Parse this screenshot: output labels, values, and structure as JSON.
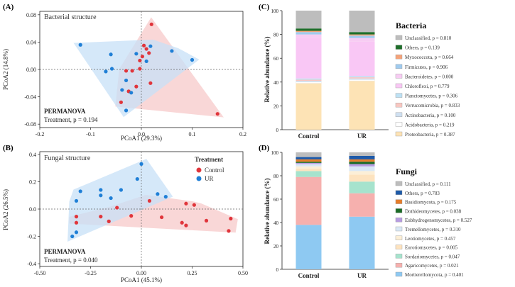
{
  "figure": {
    "panel_labels": [
      "(A)",
      "(B)",
      "(C)",
      "(D)"
    ]
  },
  "chart_data": [
    {
      "type": "scatter",
      "panel": "(A)",
      "title": "Bacterial structure",
      "xlabel": "PCoA1 (29.3%)",
      "ylabel": "PCoA2 (14.8%)",
      "xlim": [
        -0.2,
        0.2
      ],
      "ylim": [
        -0.085,
        0.085
      ],
      "xticks": [
        -0.2,
        -0.1,
        0.0,
        0.1,
        0.2
      ],
      "xtick_labels": [
        "-0.2",
        "-0.1",
        "0.0",
        "0.1",
        "0.2"
      ],
      "yticks": [
        -0.08,
        -0.04,
        0.0,
        0.04,
        0.08
      ],
      "ytick_labels": [
        "-0.08",
        "-0.04",
        "0.00",
        "0.04",
        "0.08"
      ],
      "grid": false,
      "annotation": {
        "heading": "PERMANOVA",
        "text": "Treatment, p = 0.194"
      },
      "series": [
        {
          "name": "Control",
          "color": "#e0353b",
          "fill": "#f7c9c9",
          "points": [
            [
              0.02,
              0.066
            ],
            [
              0.005,
              0.035
            ],
            [
              0.01,
              0.03
            ],
            [
              0.015,
              0.024
            ],
            [
              0.002,
              0.019
            ],
            [
              -0.003,
              0.013
            ],
            [
              -0.018,
              -0.002
            ],
            [
              -0.03,
              -0.002
            ],
            [
              -0.003,
              0.001
            ],
            [
              0.018,
              -0.02
            ],
            [
              -0.01,
              -0.025
            ],
            [
              -0.025,
              -0.032
            ],
            [
              -0.04,
              -0.048
            ],
            [
              0.15,
              -0.065
            ]
          ]
        },
        {
          "name": "UR",
          "color": "#1f7fd6",
          "fill": "#c7e0f7",
          "points": [
            [
              -0.12,
              0.036
            ],
            [
              -0.06,
              0.022
            ],
            [
              -0.01,
              0.023
            ],
            [
              0.018,
              0.034
            ],
            [
              0.06,
              0.027
            ],
            [
              0.1,
              0.014
            ],
            [
              0.01,
              0.012
            ],
            [
              -0.058,
              0.001
            ],
            [
              -0.07,
              -0.003
            ],
            [
              -0.03,
              -0.016
            ],
            [
              -0.038,
              -0.03
            ],
            [
              -0.02,
              -0.034
            ],
            [
              -0.03,
              -0.06
            ]
          ]
        }
      ]
    },
    {
      "type": "scatter",
      "panel": "(B)",
      "title": "Fungal structure",
      "xlabel": "PCoA1 (45.1%)",
      "ylabel": "PCoA2 (26.5%)",
      "xlim": [
        -0.5,
        0.5
      ],
      "ylim": [
        -0.42,
        0.42
      ],
      "xticks": [
        -0.5,
        -0.25,
        0.0,
        0.25,
        0.5
      ],
      "xtick_labels": [
        "-0.50",
        "-0.25",
        "0.00",
        "0.25",
        "0.50"
      ],
      "yticks": [
        -0.4,
        -0.2,
        0.0,
        0.2,
        0.4
      ],
      "ytick_labels": [
        "-0.4",
        "-0.2",
        "0.0",
        "0.2",
        "0.4"
      ],
      "grid": false,
      "legend": {
        "title": "Treatment",
        "placement": "top-right"
      },
      "annotation": {
        "heading": "PERMANOVA",
        "text": "Treatment, p = 0.040"
      },
      "series": [
        {
          "name": "Control",
          "color": "#e0353b",
          "fill": "#f7c9c9",
          "points": [
            [
              -0.12,
              0.01
            ],
            [
              0.04,
              0.06
            ],
            [
              0.22,
              0.04
            ],
            [
              0.26,
              0.03
            ],
            [
              -0.32,
              -0.055
            ],
            [
              -0.2,
              -0.055
            ],
            [
              -0.05,
              -0.05
            ],
            [
              0.1,
              -0.06
            ],
            [
              0.32,
              -0.085
            ],
            [
              0.44,
              -0.07
            ],
            [
              -0.32,
              -0.1
            ],
            [
              -0.16,
              -0.09
            ],
            [
              0.2,
              -0.1
            ],
            [
              0.22,
              -0.12
            ],
            [
              0.43,
              -0.16
            ]
          ]
        },
        {
          "name": "UR",
          "color": "#1f7fd6",
          "fill": "#c7e0f7",
          "points": [
            [
              0.0,
              0.33
            ],
            [
              -0.02,
              0.22
            ],
            [
              -0.2,
              0.14
            ],
            [
              -0.1,
              0.14
            ],
            [
              -0.3,
              0.13
            ],
            [
              -0.2,
              0.1
            ],
            [
              -0.15,
              0.08
            ],
            [
              -0.32,
              0.06
            ],
            [
              0.08,
              0.11
            ],
            [
              0.12,
              0.09
            ],
            [
              -0.32,
              -0.17
            ],
            [
              -0.34,
              -0.2
            ]
          ]
        }
      ]
    },
    {
      "type": "bar",
      "stacked": true,
      "panel": "(C)",
      "legend_title": "Bacteria",
      "xlabel": "",
      "ylabel": "Relative abundance (%)",
      "categories": [
        "Control",
        "UR"
      ],
      "ylim": [
        0,
        100
      ],
      "yticks": [
        0,
        20,
        40,
        60,
        80,
        100
      ],
      "yticks_shown": [
        0,
        20,
        40,
        60,
        80,
        100
      ],
      "series": [
        {
          "name": "Proteobacteria",
          "label": "Proteobacteria, p = 0.387",
          "color": "#fde3b5",
          "values": [
            39,
            41
          ]
        },
        {
          "name": "Acidobacteria",
          "label": "Acidobacteria, p = 0.219",
          "color": "#ffffff",
          "values": [
            1,
            1
          ]
        },
        {
          "name": "Actinobacteria",
          "label": "Actinobacteria, p = 0.100",
          "color": "#cfe0f1",
          "values": [
            1,
            1
          ]
        },
        {
          "name": "Verrucomicrobia",
          "label": "Verrucomicrobia, p = 0.833",
          "color": "#f8c7c1",
          "values": [
            1,
            1
          ]
        },
        {
          "name": "Planctomycetes",
          "label": "Planctomycetes, p = 0.306",
          "color": "#bde1f4",
          "values": [
            1,
            1
          ]
        },
        {
          "name": "Chloroflexi",
          "label": "Chloroflexi, p = 0.779",
          "color": "#f9c7f5",
          "values": [
            34,
            29
          ]
        },
        {
          "name": "Bacteroidetes",
          "label": "Bacteroidetes, p = 0.000",
          "color": "#f7ccf3",
          "values": [
            3,
            3
          ]
        },
        {
          "name": "Firmicutes",
          "label": "Firmicutes, p = 0.906",
          "color": "#9fcbef",
          "values": [
            2,
            2
          ]
        },
        {
          "name": "Myxococcota",
          "label": "Myxococcota, p = 0.664",
          "color": "#f4a37a",
          "values": [
            1,
            1
          ]
        },
        {
          "name": "Others",
          "label": "Others, p = 0.139",
          "color": "#1e6e2a",
          "values": [
            2,
            2
          ]
        },
        {
          "name": "Unclassified",
          "label": "Unclassified, p = 0.810",
          "color": "#bdbdbd",
          "values": [
            15,
            18
          ]
        }
      ]
    },
    {
      "type": "bar",
      "stacked": true,
      "panel": "(D)",
      "legend_title": "Fungi",
      "xlabel": "",
      "ylabel": "Relative abundance (%)",
      "categories": [
        "Control",
        "UR"
      ],
      "ylim": [
        0,
        100
      ],
      "yticks": [
        0,
        20,
        40,
        60,
        80,
        100
      ],
      "yticks_shown": [
        0,
        20,
        40,
        60,
        80,
        100
      ],
      "series": [
        {
          "name": "Mortierellomycota",
          "label": "Mortierellomycota, p = 0.401",
          "color": "#8ec9f2",
          "values": [
            38,
            45
          ]
        },
        {
          "name": "Agaricomycetes",
          "label": "Agaricomycetes, p = 0.021",
          "color": "#f6b0ae",
          "values": [
            41,
            20
          ]
        },
        {
          "name": "Sordariomycetes",
          "label": "Sordariomycetes, p = 0.047",
          "color": "#a6e3cd",
          "values": [
            5,
            10
          ]
        },
        {
          "name": "Eurotiomycetes",
          "label": "Eurotiomycetes, p = 0.005",
          "color": "#fde3bf",
          "values": [
            2,
            6
          ]
        },
        {
          "name": "Leotiomycetes",
          "label": "Leotiomycetes, p = 0.457",
          "color": "#fcefd7",
          "values": [
            2,
            3
          ]
        },
        {
          "name": "Tremellomycetes",
          "label": "Tremellomycetes, p = 0.310",
          "color": "#d9e8f6",
          "values": [
            2,
            4
          ]
        },
        {
          "name": "Eubhydrogenomycetes",
          "label": "Eubhydrogenomycetes, p = 0.527",
          "color": "#b79ce0",
          "values": [
            1,
            2
          ]
        },
        {
          "name": "Dothideomycetes",
          "label": "Dothideomycetes, p = 0.038",
          "color": "#1a6b26",
          "values": [
            1,
            2
          ]
        },
        {
          "name": "Basidiomycota",
          "label": "Basidiomycota, p = 0.175",
          "color": "#e67d2a",
          "values": [
            2,
            2
          ]
        },
        {
          "name": "Others",
          "label": "Others, p = 0.783",
          "color": "#1e5aa8",
          "values": [
            2,
            3
          ]
        },
        {
          "name": "Unclassified",
          "label": "Unclassified, p = 0.111",
          "color": "#bdbdbd",
          "values": [
            4,
            3
          ]
        }
      ]
    }
  ]
}
